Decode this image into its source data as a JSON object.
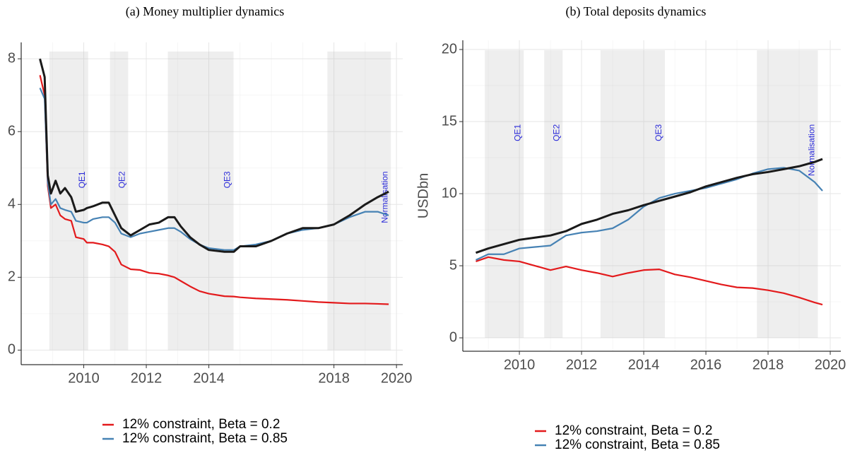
{
  "chart_data": [
    {
      "type": "line",
      "title": "(a) Money multiplier dynamics",
      "x": [
        2008.6,
        2008.75,
        2008.85,
        2008.95,
        2009.1,
        2009.25,
        2009.4,
        2009.6,
        2009.75,
        2010.0,
        2010.1,
        2010.3,
        2010.6,
        2010.8,
        2011.0,
        2011.2,
        2011.5,
        2011.8,
        2012.1,
        2012.4,
        2012.7,
        2012.9,
        2013.1,
        2013.4,
        2013.7,
        2014.0,
        2014.5,
        2014.8,
        2015.0,
        2015.5,
        2016.0,
        2016.5,
        2017.0,
        2017.5,
        2018.0,
        2018.5,
        2019.0,
        2019.4,
        2019.75
      ],
      "series": [
        {
          "name": "12% constraint, Beta = 0.2",
          "color": "#e31a1c",
          "values": [
            7.55,
            7.0,
            4.5,
            3.9,
            4.0,
            3.7,
            3.6,
            3.55,
            3.1,
            3.05,
            2.95,
            2.95,
            2.9,
            2.85,
            2.7,
            2.35,
            2.22,
            2.2,
            2.12,
            2.1,
            2.05,
            2.0,
            1.9,
            1.75,
            1.62,
            1.55,
            1.48,
            1.47,
            1.45,
            1.42,
            1.4,
            1.38,
            1.35,
            1.32,
            1.3,
            1.28,
            1.28,
            1.27,
            1.26
          ]
        },
        {
          "name": "12% constraint, Beta = 0.85",
          "color": "#4682b4",
          "values": [
            7.2,
            6.9,
            4.6,
            4.0,
            4.15,
            3.9,
            3.85,
            3.8,
            3.55,
            3.5,
            3.5,
            3.6,
            3.65,
            3.65,
            3.5,
            3.2,
            3.1,
            3.2,
            3.25,
            3.3,
            3.35,
            3.35,
            3.25,
            3.05,
            2.9,
            2.8,
            2.75,
            2.75,
            2.85,
            2.9,
            3.0,
            3.2,
            3.3,
            3.35,
            3.45,
            3.65,
            3.8,
            3.8,
            3.7
          ]
        },
        {
          "color": "#1a1a1a",
          "values": [
            8.0,
            7.5,
            4.8,
            4.3,
            4.65,
            4.3,
            4.45,
            4.2,
            3.8,
            3.85,
            3.9,
            3.95,
            4.05,
            4.05,
            3.7,
            3.35,
            3.15,
            3.3,
            3.45,
            3.5,
            3.65,
            3.65,
            3.4,
            3.1,
            2.9,
            2.75,
            2.7,
            2.7,
            2.85,
            2.85,
            3.0,
            3.2,
            3.35,
            3.35,
            3.45,
            3.7,
            4.0,
            4.2,
            4.35
          ]
        }
      ],
      "shaded_periods": [
        {
          "label": "QE1",
          "start": 2008.9,
          "end": 2010.14
        },
        {
          "label": "QE2",
          "start": 2010.84,
          "end": 2011.42
        },
        {
          "label": "QE3",
          "start": 2012.69,
          "end": 2014.79
        },
        {
          "label": "Normalisation",
          "start": 2017.79,
          "end": 2019.82
        }
      ],
      "shade_top": 8.2,
      "xlim": [
        2008.0,
        2020.2
      ],
      "ylim": [
        -0.4,
        8.45
      ],
      "xticks": [
        2010,
        2012,
        2014,
        2018,
        2020
      ],
      "yticks": [
        0,
        2,
        4,
        6,
        8
      ],
      "grid": true,
      "legend": "bottom"
    },
    {
      "type": "line",
      "title": "(b) Total deposits dynamics",
      "ylabel": "USDbn",
      "x": [
        2008.6,
        2009.0,
        2009.5,
        2010.0,
        2010.5,
        2011.0,
        2011.5,
        2012.0,
        2012.5,
        2013.0,
        2013.5,
        2014.0,
        2014.5,
        2015.0,
        2015.5,
        2016.0,
        2016.5,
        2017.0,
        2017.5,
        2018.0,
        2018.5,
        2019.0,
        2019.5,
        2019.75
      ],
      "series": [
        {
          "name": "12% constraint, Beta = 0.2",
          "color": "#e31a1c",
          "values": [
            5.3,
            5.6,
            5.4,
            5.3,
            5.0,
            4.7,
            4.95,
            4.7,
            4.5,
            4.25,
            4.5,
            4.7,
            4.75,
            4.4,
            4.2,
            3.95,
            3.7,
            3.5,
            3.45,
            3.3,
            3.1,
            2.8,
            2.45,
            2.3
          ]
        },
        {
          "name": "12% constraint, Beta = 0.85",
          "color": "#4682b4",
          "values": [
            5.4,
            5.8,
            5.8,
            6.2,
            6.3,
            6.4,
            7.1,
            7.3,
            7.4,
            7.6,
            8.2,
            9.1,
            9.7,
            10.0,
            10.2,
            10.4,
            10.7,
            11.0,
            11.4,
            11.7,
            11.8,
            11.6,
            10.8,
            10.2
          ]
        },
        {
          "color": "#1a1a1a",
          "values": [
            5.9,
            6.2,
            6.5,
            6.8,
            6.95,
            7.1,
            7.4,
            7.9,
            8.2,
            8.6,
            8.85,
            9.2,
            9.5,
            9.8,
            10.1,
            10.5,
            10.8,
            11.1,
            11.35,
            11.5,
            11.7,
            11.9,
            12.2,
            12.4
          ]
        }
      ],
      "shaded_periods": [
        {
          "label": "QE1",
          "start": 2008.89,
          "end": 2010.14
        },
        {
          "label": "QE2",
          "start": 2010.8,
          "end": 2011.39
        },
        {
          "label": "QE3",
          "start": 2012.61,
          "end": 2014.68
        },
        {
          "label": "Normalisation",
          "start": 2017.64,
          "end": 2019.6
        }
      ],
      "shade_top": 19.95,
      "xlim": [
        2008.18,
        2020.34
      ],
      "ylim": [
        -0.93,
        20.64
      ],
      "xticks": [
        2010,
        2012,
        2014,
        2016,
        2018,
        2020
      ],
      "yticks": [
        0,
        5,
        10,
        15,
        20
      ],
      "grid": true,
      "legend": "bottom"
    }
  ]
}
